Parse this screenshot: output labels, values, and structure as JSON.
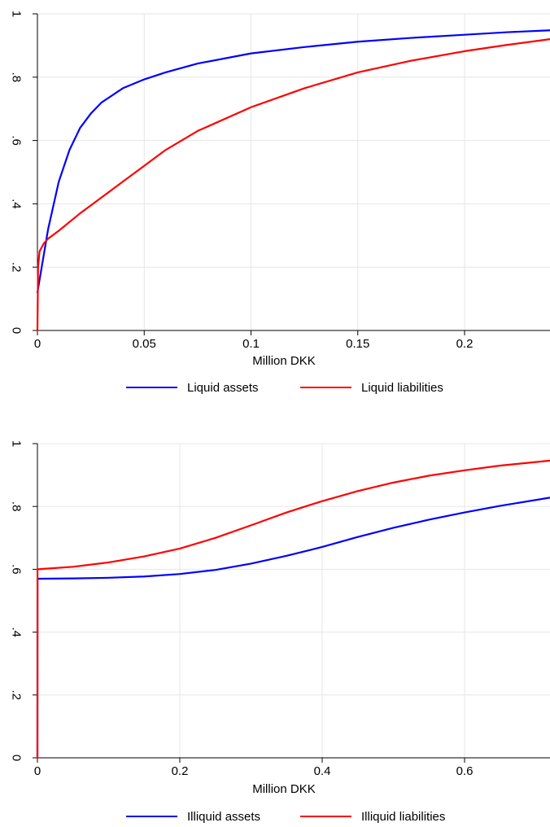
{
  "chart_data": [
    {
      "type": "line",
      "xlabel": "Million DKK",
      "ylabel": "",
      "xlim": [
        0,
        0.24
      ],
      "ylim": [
        0,
        1
      ],
      "x_ticks": [
        0,
        0.05,
        0.1,
        0.15,
        0.2
      ],
      "x_tick_labels": [
        "0",
        "0.05",
        "0.1",
        "0.15",
        "0.2"
      ],
      "y_ticks": [
        0,
        0.2,
        0.4,
        0.6,
        0.8,
        1
      ],
      "y_tick_labels": [
        "0",
        ".2",
        ".4",
        ".6",
        ".8",
        "1"
      ],
      "grid": true,
      "legend_position": "bottom",
      "series": [
        {
          "name": "Liquid assets",
          "color": "#0000ff",
          "x": [
            0,
            0.002,
            0.005,
            0.01,
            0.015,
            0.02,
            0.025,
            0.03,
            0.04,
            0.05,
            0.06,
            0.075,
            0.1,
            0.125,
            0.15,
            0.175,
            0.2,
            0.22,
            0.24
          ],
          "y": [
            0.12,
            0.2,
            0.32,
            0.47,
            0.57,
            0.64,
            0.685,
            0.72,
            0.765,
            0.793,
            0.815,
            0.843,
            0.875,
            0.895,
            0.912,
            0.924,
            0.934,
            0.942,
            0.948
          ]
        },
        {
          "name": "Liquid liabilities",
          "color": "#ff0000",
          "x": [
            0,
            0.0003,
            0.001,
            0.003,
            0.005,
            0.01,
            0.02,
            0.03,
            0.04,
            0.05,
            0.06,
            0.075,
            0.1,
            0.125,
            0.15,
            0.175,
            0.2,
            0.22,
            0.24
          ],
          "y": [
            0.0,
            0.2,
            0.25,
            0.275,
            0.29,
            0.315,
            0.37,
            0.42,
            0.47,
            0.52,
            0.57,
            0.63,
            0.705,
            0.765,
            0.815,
            0.852,
            0.882,
            0.902,
            0.92
          ]
        }
      ]
    },
    {
      "type": "line",
      "xlabel": "Million DKK",
      "ylabel": "",
      "xlim": [
        0,
        0.72
      ],
      "ylim": [
        0,
        1
      ],
      "x_ticks": [
        0,
        0.2,
        0.4,
        0.6
      ],
      "x_tick_labels": [
        "0",
        "0.2",
        "0.4",
        "0.6"
      ],
      "y_ticks": [
        0,
        0.2,
        0.4,
        0.6,
        0.8,
        1
      ],
      "y_tick_labels": [
        "0",
        ".2",
        ".4",
        ".6",
        ".8",
        "1"
      ],
      "grid": true,
      "legend_position": "bottom",
      "series": [
        {
          "name": "Illiquid assets",
          "color": "#0000ff",
          "x": [
            0,
            0.0001,
            0.05,
            0.1,
            0.15,
            0.2,
            0.25,
            0.3,
            0.35,
            0.4,
            0.45,
            0.5,
            0.55,
            0.6,
            0.65,
            0.72
          ],
          "y": [
            0.0,
            0.57,
            0.571,
            0.573,
            0.577,
            0.585,
            0.598,
            0.618,
            0.643,
            0.671,
            0.703,
            0.732,
            0.758,
            0.781,
            0.802,
            0.828
          ]
        },
        {
          "name": "Illiquid liabilities",
          "color": "#ff0000",
          "x": [
            0,
            0.0001,
            0.05,
            0.1,
            0.15,
            0.2,
            0.25,
            0.3,
            0.35,
            0.4,
            0.45,
            0.5,
            0.55,
            0.6,
            0.65,
            0.72
          ],
          "y": [
            0.0,
            0.6,
            0.608,
            0.622,
            0.641,
            0.666,
            0.7,
            0.74,
            0.781,
            0.817,
            0.849,
            0.876,
            0.898,
            0.915,
            0.93,
            0.946
          ]
        }
      ]
    }
  ]
}
